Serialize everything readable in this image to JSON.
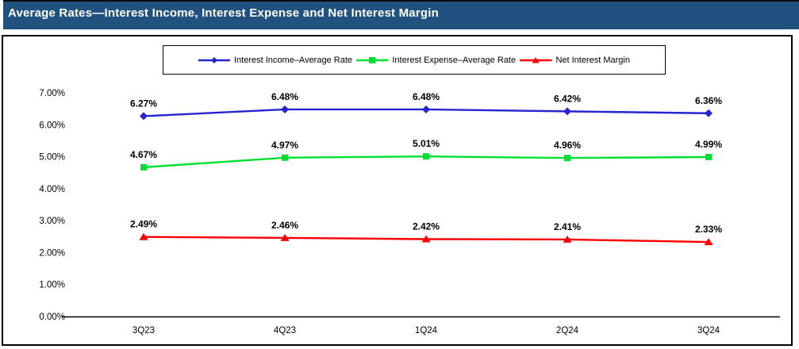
{
  "header": {
    "title": "Average Rates—Interest Income, Interest Expense and Net Interest Margin",
    "background_color": "#21527F",
    "text_color": "#FFFFFF"
  },
  "chart_data": {
    "type": "line",
    "title": "Average Rates—Interest Income, Interest Expense and Net Interest Margin",
    "categories": [
      "3Q23",
      "4Q23",
      "1Q24",
      "2Q24",
      "3Q24"
    ],
    "series": [
      {
        "name": "Interest Income–Average Rate",
        "values": [
          6.27,
          6.48,
          6.48,
          6.42,
          6.36
        ],
        "data_labels": [
          "6.27%",
          "6.48%",
          "6.48%",
          "6.42%",
          "6.36%"
        ],
        "color": "#2525CD",
        "marker": "diamond"
      },
      {
        "name": "Interest Expense–Average Rate",
        "values": [
          4.67,
          4.97,
          5.01,
          4.96,
          4.99
        ],
        "data_labels": [
          "4.67%",
          "4.97%",
          "5.01%",
          "4.96%",
          "4.99%"
        ],
        "color": "#00E033",
        "marker": "square"
      },
      {
        "name": "Net Interest Margin",
        "values": [
          2.49,
          2.46,
          2.42,
          2.41,
          2.33
        ],
        "data_labels": [
          "2.49%",
          "2.46%",
          "2.42%",
          "2.41%",
          "2.33%"
        ],
        "color": "#FF0000",
        "marker": "triangle"
      }
    ],
    "xlabel": "",
    "ylabel": "",
    "y_tick_labels": [
      "0.00%",
      "1.00%",
      "2.00%",
      "3.00%",
      "4.00%",
      "5.00%",
      "6.00%",
      "7.00%"
    ],
    "ylim": [
      0,
      7
    ],
    "grid": false,
    "legend_position": "top",
    "axis_color": "#000000",
    "label_color": "#000000"
  }
}
